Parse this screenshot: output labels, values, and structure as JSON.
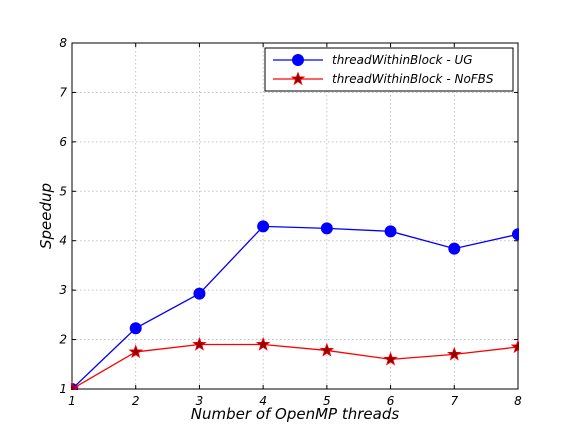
{
  "chart_data": {
    "type": "line",
    "title": "",
    "xlabel": "Number of OpenMP threads",
    "ylabel": "Speedup",
    "xlim": [
      1,
      8
    ],
    "ylim": [
      1,
      8
    ],
    "x_ticks": [
      "1",
      "2",
      "3",
      "4",
      "5",
      "6",
      "7",
      "8"
    ],
    "y_ticks": [
      "1",
      "2",
      "3",
      "4",
      "5",
      "6",
      "7",
      "8"
    ],
    "grid": true,
    "legend_position": "top-right",
    "x": [
      1,
      2,
      3,
      4,
      5,
      6,
      7,
      8
    ],
    "series": [
      {
        "name": "threadWithinBlock - UG",
        "values": [
          1.0,
          2.23,
          2.93,
          4.29,
          4.25,
          4.19,
          3.84,
          4.13
        ],
        "color": "#0000ff",
        "marker": "circle"
      },
      {
        "name": "threadWithinBlock - NoFBS",
        "values": [
          1.0,
          1.75,
          1.9,
          1.9,
          1.78,
          1.6,
          1.7,
          1.85
        ],
        "color": "#ff0000",
        "marker": "star"
      }
    ]
  }
}
